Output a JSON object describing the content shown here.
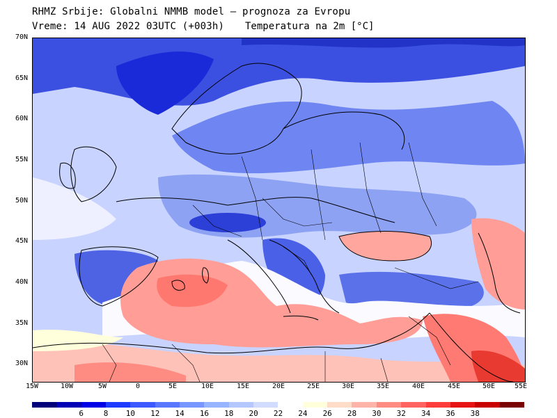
{
  "header": {
    "line1": "RHMZ Srbije: Globalni NMMB model – prognoza za Evropu",
    "line2": "Vreme: 14 AUG 2022 03UTC (+003h)",
    "line2b": "Temperatura na 2m [°C]"
  },
  "map": {
    "lat_labels": [
      "70N",
      "65N",
      "60N",
      "55N",
      "50N",
      "45N",
      "40N",
      "35N",
      "30N"
    ],
    "lon_labels": [
      "15W",
      "10W",
      "5W",
      "0",
      "5E",
      "10E",
      "15E",
      "20E",
      "25E",
      "30E",
      "35E",
      "40E",
      "45E",
      "50E",
      "55E"
    ]
  },
  "colorbar": {
    "labels": [
      "6",
      "8",
      "10",
      "12",
      "14",
      "16",
      "18",
      "20",
      "22",
      "24",
      "26",
      "28",
      "30",
      "32",
      "34",
      "36",
      "38"
    ],
    "colors": [
      "#00007a",
      "#0000b4",
      "#0000e6",
      "#1e3cff",
      "#3c5aff",
      "#5a78ff",
      "#7896ff",
      "#96b4ff",
      "#b4c8ff",
      "#d2dcff",
      "#ffffff",
      "#ffffdc",
      "#ffdcc8",
      "#ffb4aa",
      "#ff8c82",
      "#ff6460",
      "#ff3c3c",
      "#e61414",
      "#c80000",
      "#7a0000"
    ]
  }
}
